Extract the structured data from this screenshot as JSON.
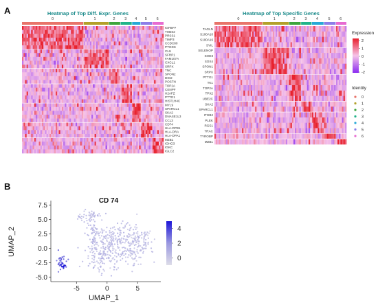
{
  "panels": {
    "a_label": "A",
    "b_label": "B"
  },
  "identity_colors": [
    "#e8746a",
    "#b3a02a",
    "#3da53d",
    "#21b38a",
    "#27a9d6",
    "#8c7ee8",
    "#e76bd1"
  ],
  "chart_data": [
    {
      "type": "heatmap",
      "title": "Heatmap of Top Diff. Expr. Genes",
      "clusters": [
        "0",
        "1",
        "2",
        "3",
        "4",
        "5",
        "6"
      ],
      "cluster_widths": [
        0.44,
        0.18,
        0.08,
        0.08,
        0.06,
        0.08,
        0.08
      ],
      "genes": [
        "IGFBP7",
        "THBS2",
        "PRSS1",
        "TIMP3",
        "CCDC80",
        "PTGDS",
        "CLU",
        "SFRP1",
        "FAM107A",
        "CXCL1",
        "SRPX",
        "TNC",
        "SPON2",
        "DIO2",
        "POSTN",
        "TOP2A",
        "CENPF",
        "H2AFZ",
        "PTTG1",
        "HIST1H4C",
        "MYL9",
        "SPARCL1",
        "SKA2",
        "DNASE1L3",
        "CCL3",
        "CD74",
        "HLA-DPB1",
        "HLA-DRA",
        "HLA-DPA1",
        "MZB1",
        "IGHG3",
        "IGKC",
        "IGLC2"
      ],
      "gene_groups": [
        6,
        5,
        4,
        5,
        5,
        4,
        4
      ]
    },
    {
      "type": "heatmap",
      "title": "Heatmap of Top Specific Genes",
      "clusters": [
        "0",
        "1",
        "2",
        "3",
        "4",
        "5",
        "6"
      ],
      "cluster_widths": [
        0.37,
        0.2,
        0.09,
        0.08,
        0.09,
        0.09,
        0.08
      ],
      "genes": [
        "TAGLN",
        "S100A10",
        "S100A16",
        "SVIL",
        "SELENOP",
        "SOD3",
        "SOX4",
        "SPON1",
        "SRPX",
        "PTTG1",
        "TK1",
        "TOP2A",
        "TPX2",
        "UBE2C",
        "SKA2",
        "SPARCL1",
        "ITGB2",
        "PLEK",
        "RGS1",
        "TRAC",
        "TYROBP",
        "MZB1"
      ],
      "gene_groups": [
        4,
        5,
        5,
        2,
        4,
        1,
        1
      ],
      "legend": {
        "expression_title": "Expression",
        "expression_ticks": [
          "2",
          "1",
          "0",
          "-1",
          "-2"
        ],
        "identity_title": "Identity",
        "identity_labels": [
          "0",
          "1",
          "2",
          "3",
          "4",
          "5",
          "6"
        ]
      }
    },
    {
      "type": "scatter",
      "title": "CD 74",
      "xlabel": "UMAP_1",
      "ylabel": "UMAP_2",
      "xlim": [
        -9.2,
        8.8
      ],
      "ylim": [
        -5.8,
        8.3
      ],
      "xticks": [
        "-5",
        "0",
        "5"
      ],
      "xtick_values": [
        -5,
        0,
        5
      ],
      "yticks": [
        "7.5",
        "5.0",
        "2.5",
        "0.0",
        "-2.5",
        "-5.0"
      ],
      "ytick_values": [
        7.5,
        5.0,
        2.5,
        0.0,
        -2.5,
        -5.0
      ],
      "colorbar_ticks": [
        "4",
        "2",
        "0"
      ],
      "colorbar_tick_values": [
        4,
        2,
        0
      ],
      "color_range": [
        -1,
        5
      ],
      "clusters": [
        {
          "cx": -3.0,
          "cy": 5.6,
          "sx": 0.9,
          "sy": 0.45,
          "n": 50,
          "v": 0.5
        },
        {
          "cx": -2.2,
          "cy": 2.2,
          "sx": 0.5,
          "sy": 1.4,
          "n": 60,
          "v": 0.6
        },
        {
          "cx": -0.6,
          "cy": -1.0,
          "sx": 1.4,
          "sy": 1.6,
          "n": 170,
          "v": 0.5
        },
        {
          "cx": 1.1,
          "cy": 2.0,
          "sx": 1.2,
          "sy": 0.9,
          "n": 70,
          "v": 0.5
        },
        {
          "cx": 4.0,
          "cy": 0.6,
          "sx": 1.4,
          "sy": 1.9,
          "n": 170,
          "v": 0.4
        },
        {
          "cx": 6.0,
          "cy": 1.2,
          "sx": 0.7,
          "sy": 1.2,
          "n": 50,
          "v": 0.4
        },
        {
          "cx": -7.6,
          "cy": -2.3,
          "sx": 0.55,
          "sy": 0.7,
          "n": 30,
          "v": 3.2
        },
        {
          "cx": -7.3,
          "cy": -3.1,
          "sx": 0.25,
          "sy": 0.3,
          "n": 14,
          "v": 4.8
        }
      ]
    }
  ]
}
